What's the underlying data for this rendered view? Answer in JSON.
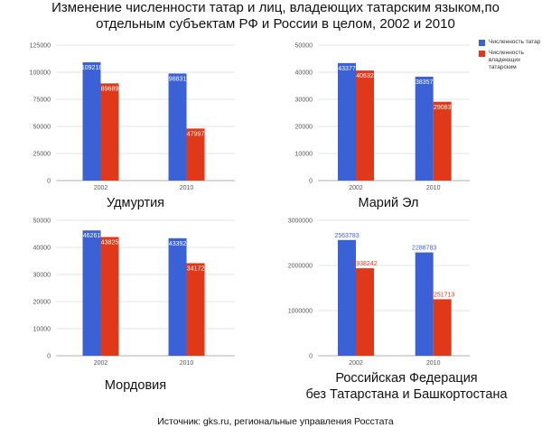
{
  "title": {
    "line1": "Изменение численности татар и лиц, владеющих татарским языком,по",
    "line2": "отдельным субъектам РФ и России в целом, 2002 и 2010"
  },
  "source": "Источник: gks.ru, региональные управления Росстата",
  "legend": {
    "tatars": "Численность татар",
    "speakers": "Численность владеющих татарским"
  },
  "colors": {
    "tatars": "#3a62d6",
    "speakers": "#e0391a",
    "grid": "#dddddd"
  },
  "chart_data": [
    {
      "type": "bar",
      "title": "Удмуртия",
      "categories": [
        "2002",
        "2010"
      ],
      "series": [
        {
          "name": "Численность татар",
          "values": [
            109218,
            98831
          ]
        },
        {
          "name": "Численность владеющих татарским",
          "values": [
            89689,
            47997
          ]
        }
      ],
      "ylim": [
        0,
        125000
      ],
      "yticks": [
        "0",
        "25000",
        "50000",
        "75000",
        "100000",
        "125000"
      ],
      "labels_inside": true
    },
    {
      "type": "bar",
      "title": "Марий Эл",
      "categories": [
        "2002",
        "2010"
      ],
      "series": [
        {
          "name": "Численность татар",
          "values": [
            43377,
            38357
          ]
        },
        {
          "name": "Численность владеющих татарским",
          "values": [
            40632,
            29083
          ]
        }
      ],
      "ylim": [
        0,
        50000
      ],
      "yticks": [
        "0",
        "10000",
        "20000",
        "30000",
        "40000",
        "50000"
      ],
      "labels_inside": true,
      "legend": "right"
    },
    {
      "type": "bar",
      "title": "Мордовия",
      "categories": [
        "2002",
        "2010"
      ],
      "series": [
        {
          "name": "Численность татар",
          "values": [
            46261,
            43392
          ]
        },
        {
          "name": "Численность владеющих татарским",
          "values": [
            43825,
            34172
          ]
        }
      ],
      "ylim": [
        0,
        50000
      ],
      "yticks": [
        "0",
        "10000",
        "20000",
        "30000",
        "40000",
        "50000"
      ],
      "labels_inside": true
    },
    {
      "type": "bar",
      "title_line1": "Российская Федерация",
      "title_line2": "без Татарстана и Башкортостана",
      "categories": [
        "2002",
        "2010"
      ],
      "series": [
        {
          "name": "Численность татар",
          "values": [
            2563783,
            2288783
          ]
        },
        {
          "name": "Численность владеющих татарским",
          "values": [
            1938242,
            1251713
          ]
        }
      ],
      "ylim": [
        0,
        3000000
      ],
      "yticks": [
        "0",
        "1000000",
        "2000000",
        "3000000"
      ],
      "labels_inside": false
    }
  ]
}
